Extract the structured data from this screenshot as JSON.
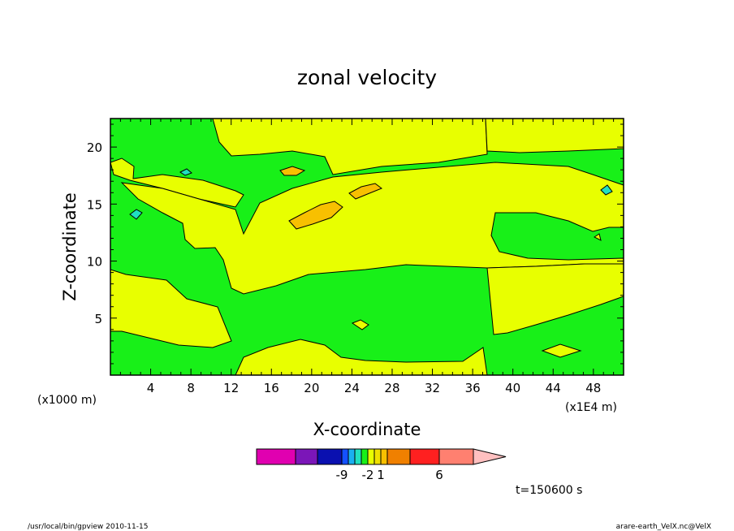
{
  "chart_data": {
    "type": "contour",
    "title": "zonal velocity",
    "xlabel": "X-coordinate",
    "ylabel": "Z-coordinate",
    "x_unit_note": "(x1E4 m)",
    "y_unit_note": "(x1000 m)",
    "xlim": [
      0,
      51
    ],
    "ylim": [
      0,
      22.5
    ],
    "x_ticks": [
      4,
      8,
      12,
      16,
      20,
      24,
      28,
      32,
      36,
      40,
      44,
      48
    ],
    "y_ticks": [
      5,
      10,
      15,
      20
    ],
    "colorbar": {
      "segments": [
        {
          "color": "#e000b0"
        },
        {
          "color": "#7b16b8"
        },
        {
          "color": "#0a10b0"
        },
        {
          "color": "#1450ff"
        },
        {
          "color": "#1ab0f0"
        },
        {
          "color": "#20e0c0"
        },
        {
          "color": "#18f018"
        },
        {
          "color": "#e8ff00"
        },
        {
          "color": "#f0e000"
        },
        {
          "color": "#f8c000"
        },
        {
          "color": "#f08000"
        },
        {
          "color": "#ff2020"
        },
        {
          "color": "#ff8070"
        }
      ],
      "extend_color": "#ffc0c0",
      "tick_labels": [
        {
          "label": "-9",
          "segment": 2
        },
        {
          "label": "-2",
          "segment": 6
        },
        {
          "label": "1",
          "segment": 8
        },
        {
          "label": "6",
          "segment": 11
        }
      ]
    },
    "colors": {
      "green": "#18f018",
      "yellow": "#e8ff00",
      "orange": "#f8c000",
      "cyan": "#20e0c0"
    }
  },
  "time_label": "t=150600 s",
  "footer_left": "/usr/local/bin/gpview  2010-11-15",
  "footer_right": "arare-earth_VelX.nc@VelX"
}
